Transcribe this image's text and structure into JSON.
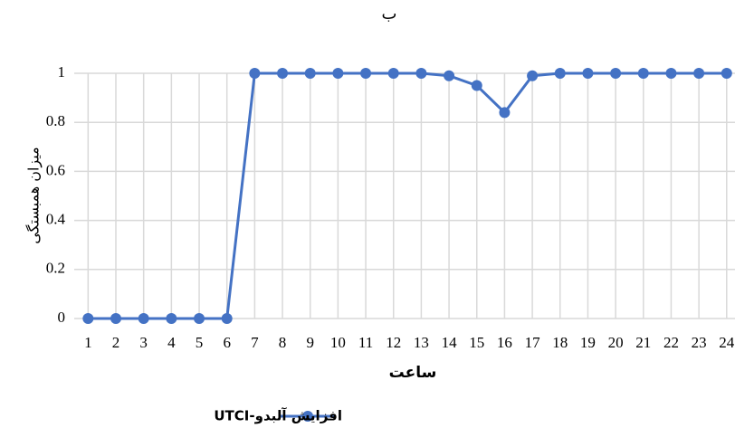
{
  "chart_data": {
    "type": "line",
    "title": "ب",
    "x_label": "ساعت",
    "y_label": "میزان همبستگی",
    "x": [
      1,
      2,
      3,
      4,
      5,
      6,
      7,
      8,
      9,
      10,
      11,
      12,
      13,
      14,
      15,
      16,
      17,
      18,
      19,
      20,
      21,
      22,
      23,
      24
    ],
    "series": [
      {
        "name": "افزایش آلبدو-UTCI",
        "color": "#4472c4",
        "values": [
          0,
          0,
          0,
          0,
          0,
          0,
          1,
          1,
          1,
          1,
          1,
          1,
          1,
          0.99,
          0.95,
          0.84,
          0.99,
          1,
          1,
          1,
          1,
          1,
          1,
          1
        ]
      }
    ],
    "xlim": [
      0.5,
      24.3
    ],
    "xticks": [
      1,
      2,
      3,
      4,
      5,
      6,
      7,
      8,
      9,
      10,
      11,
      12,
      13,
      14,
      15,
      16,
      17,
      18,
      19,
      20,
      21,
      22,
      23,
      24
    ],
    "ylim": [
      0,
      1
    ],
    "yticks": [
      0,
      0.2,
      0.4,
      0.6,
      0.8,
      1
    ],
    "grid": true
  }
}
